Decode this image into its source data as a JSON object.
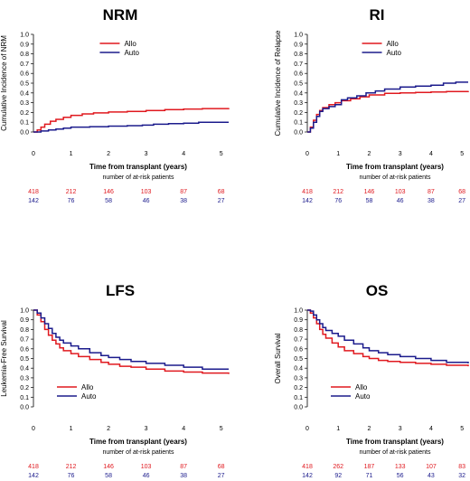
{
  "colors": {
    "allo": "#e0191f",
    "auto": "#1b1b8c",
    "axis": "#000000"
  },
  "chart_data": [
    {
      "type": "line",
      "title": "NRM",
      "xlabel": "Time from transplant (years)",
      "ylabel": "Cumulative Incidence of NRM",
      "xlim": [
        0,
        5.2
      ],
      "ylim": [
        0,
        1.0
      ],
      "xticks": [
        "0",
        "1",
        "2",
        "3",
        "4",
        "5"
      ],
      "yticks": [
        "0.0",
        "0.1",
        "0.2",
        "0.3",
        "0.4",
        "0.5",
        "0.6",
        "0.7",
        "0.8",
        "0.9",
        "1.0"
      ],
      "legend": {
        "position": "top-center",
        "entries": [
          "Allo",
          "Auto"
        ]
      },
      "at_risk_title": "number of at-risk patients",
      "series": [
        {
          "name": "Allo",
          "color": "#e0191f",
          "x": [
            0,
            0.1,
            0.2,
            0.3,
            0.45,
            0.6,
            0.8,
            1.0,
            1.3,
            1.6,
            2.0,
            2.5,
            3.0,
            3.5,
            4.0,
            4.5,
            5.2
          ],
          "y": [
            0,
            0.02,
            0.05,
            0.08,
            0.11,
            0.13,
            0.15,
            0.17,
            0.185,
            0.195,
            0.205,
            0.21,
            0.22,
            0.23,
            0.235,
            0.24,
            0.245
          ]
        },
        {
          "name": "Auto",
          "color": "#1b1b8c",
          "x": [
            0,
            0.2,
            0.4,
            0.6,
            0.8,
            1.0,
            1.5,
            2.0,
            2.5,
            2.9,
            3.2,
            3.6,
            4.0,
            4.4,
            5.2
          ],
          "y": [
            0,
            0.01,
            0.02,
            0.03,
            0.04,
            0.05,
            0.055,
            0.06,
            0.065,
            0.07,
            0.08,
            0.085,
            0.09,
            0.1,
            0.1
          ]
        }
      ],
      "at_risk": [
        {
          "name": "Allo",
          "values": [
            "418",
            "212",
            "146",
            "103",
            "87",
            "68"
          ]
        },
        {
          "name": "Auto",
          "values": [
            "142",
            "76",
            "58",
            "46",
            "38",
            "27"
          ]
        }
      ]
    },
    {
      "type": "line",
      "title": "RI",
      "xlabel": "Time from transplant (years)",
      "ylabel": "Cumulative Incidence of Relapse",
      "xlim": [
        0,
        5.2
      ],
      "ylim": [
        0,
        1.0
      ],
      "xticks": [
        "0",
        "1",
        "2",
        "3",
        "4",
        "5"
      ],
      "yticks": [
        "0.0",
        "0.1",
        "0.2",
        "0.3",
        "0.4",
        "0.5",
        "0.6",
        "0.7",
        "0.8",
        "0.9",
        "1.0"
      ],
      "legend": {
        "position": "top-center",
        "entries": [
          "Allo",
          "Auto"
        ]
      },
      "at_risk_title": "number of at-risk patients",
      "series": [
        {
          "name": "Allo",
          "color": "#e0191f",
          "x": [
            0,
            0.1,
            0.2,
            0.3,
            0.4,
            0.5,
            0.7,
            0.9,
            1.1,
            1.4,
            1.7,
            2.0,
            2.5,
            3.0,
            3.5,
            4.0,
            4.5,
            5.2
          ],
          "y": [
            0,
            0.05,
            0.12,
            0.18,
            0.22,
            0.25,
            0.28,
            0.3,
            0.32,
            0.34,
            0.36,
            0.38,
            0.395,
            0.4,
            0.405,
            0.41,
            0.415,
            0.42
          ]
        },
        {
          "name": "Auto",
          "color": "#1b1b8c",
          "x": [
            0,
            0.1,
            0.2,
            0.3,
            0.4,
            0.5,
            0.7,
            0.9,
            1.1,
            1.3,
            1.6,
            1.9,
            2.2,
            2.5,
            3.0,
            3.5,
            4.0,
            4.4,
            4.8,
            5.2
          ],
          "y": [
            0,
            0.04,
            0.1,
            0.16,
            0.21,
            0.24,
            0.26,
            0.28,
            0.33,
            0.35,
            0.37,
            0.4,
            0.42,
            0.44,
            0.46,
            0.47,
            0.48,
            0.5,
            0.51,
            0.51
          ]
        }
      ],
      "at_risk": [
        {
          "name": "Allo",
          "values": [
            "418",
            "212",
            "146",
            "103",
            "87",
            "68"
          ]
        },
        {
          "name": "Auto",
          "values": [
            "142",
            "76",
            "58",
            "46",
            "38",
            "27"
          ]
        }
      ]
    },
    {
      "type": "line",
      "title": "LFS",
      "xlabel": "Time from transplant (years)",
      "ylabel": "Leukemia-Free Survival",
      "xlim": [
        0,
        5.2
      ],
      "ylim": [
        0,
        1.0
      ],
      "xticks": [
        "0",
        "1",
        "2",
        "3",
        "4",
        "5"
      ],
      "yticks": [
        "0.0",
        "0.1",
        "0.2",
        "0.3",
        "0.4",
        "0.5",
        "0.6",
        "0.7",
        "0.8",
        "0.9",
        "1.0"
      ],
      "legend": {
        "position": "bottom-left",
        "entries": [
          "Allo",
          "Auto"
        ]
      },
      "at_risk_title": "number of at-risk patients",
      "series": [
        {
          "name": "Allo",
          "color": "#e0191f",
          "x": [
            0,
            0.1,
            0.2,
            0.3,
            0.4,
            0.5,
            0.6,
            0.7,
            0.8,
            1.0,
            1.2,
            1.5,
            1.8,
            2.0,
            2.3,
            2.6,
            3.0,
            3.5,
            4.0,
            4.5,
            5.2
          ],
          "y": [
            1,
            0.95,
            0.88,
            0.8,
            0.74,
            0.69,
            0.65,
            0.61,
            0.58,
            0.55,
            0.52,
            0.49,
            0.46,
            0.44,
            0.42,
            0.41,
            0.39,
            0.37,
            0.36,
            0.35,
            0.34
          ]
        },
        {
          "name": "Auto",
          "color": "#1b1b8c",
          "x": [
            0,
            0.1,
            0.2,
            0.3,
            0.4,
            0.5,
            0.6,
            0.7,
            0.8,
            1.0,
            1.2,
            1.5,
            1.8,
            2.0,
            2.3,
            2.6,
            3.0,
            3.5,
            4.0,
            4.5,
            5.2
          ],
          "y": [
            1,
            0.97,
            0.92,
            0.86,
            0.81,
            0.76,
            0.72,
            0.69,
            0.66,
            0.63,
            0.6,
            0.56,
            0.53,
            0.51,
            0.49,
            0.47,
            0.45,
            0.43,
            0.41,
            0.39,
            0.39
          ]
        }
      ],
      "at_risk": [
        {
          "name": "Allo",
          "values": [
            "418",
            "212",
            "146",
            "103",
            "87",
            "68"
          ]
        },
        {
          "name": "Auto",
          "values": [
            "142",
            "76",
            "58",
            "46",
            "38",
            "27"
          ]
        }
      ]
    },
    {
      "type": "line",
      "title": "OS",
      "xlabel": "Time from transplant (years)",
      "ylabel": "Overall Survival",
      "xlim": [
        0,
        5.2
      ],
      "ylim": [
        0,
        1.0
      ],
      "xticks": [
        "0",
        "1",
        "2",
        "3",
        "4",
        "5"
      ],
      "yticks": [
        "0.0",
        "0.1",
        "0.2",
        "0.3",
        "0.4",
        "0.5",
        "0.6",
        "0.7",
        "0.8",
        "0.9",
        "1.0"
      ],
      "legend": {
        "position": "bottom-left",
        "entries": [
          "Allo",
          "Auto"
        ]
      },
      "at_risk_title": "number of at-risk patients",
      "series": [
        {
          "name": "Allo",
          "color": "#e0191f",
          "x": [
            0,
            0.1,
            0.2,
            0.3,
            0.4,
            0.5,
            0.6,
            0.8,
            1.0,
            1.2,
            1.5,
            1.8,
            2.0,
            2.3,
            2.6,
            3.0,
            3.5,
            4.0,
            4.5,
            5.2
          ],
          "y": [
            1,
            0.97,
            0.92,
            0.86,
            0.8,
            0.75,
            0.71,
            0.66,
            0.62,
            0.58,
            0.55,
            0.52,
            0.5,
            0.48,
            0.47,
            0.46,
            0.45,
            0.44,
            0.43,
            0.42
          ]
        },
        {
          "name": "Auto",
          "color": "#1b1b8c",
          "x": [
            0,
            0.1,
            0.2,
            0.3,
            0.4,
            0.5,
            0.6,
            0.8,
            1.0,
            1.2,
            1.5,
            1.8,
            2.0,
            2.3,
            2.6,
            3.0,
            3.5,
            4.0,
            4.5,
            5.2
          ],
          "y": [
            1,
            0.99,
            0.95,
            0.9,
            0.86,
            0.82,
            0.79,
            0.76,
            0.73,
            0.69,
            0.65,
            0.61,
            0.58,
            0.56,
            0.54,
            0.52,
            0.5,
            0.48,
            0.46,
            0.45
          ]
        }
      ],
      "at_risk": [
        {
          "name": "Allo",
          "values": [
            "418",
            "262",
            "187",
            "133",
            "107",
            "83"
          ]
        },
        {
          "name": "Auto",
          "values": [
            "142",
            "92",
            "71",
            "56",
            "43",
            "32"
          ]
        }
      ]
    }
  ]
}
